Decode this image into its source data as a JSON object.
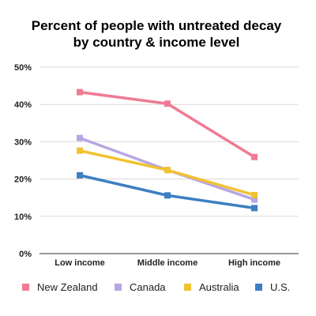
{
  "chart_data": {
    "type": "line",
    "title_lines": [
      "Percent of people with untreated decay",
      "by country & income level"
    ],
    "categories": [
      "Low income",
      "Middle income",
      "High income"
    ],
    "y_ticks": [
      "0%",
      "10%",
      "20%",
      "30%",
      "40%",
      "50%"
    ],
    "ylim": [
      0,
      50
    ],
    "grid": true,
    "legend_position": "bottom",
    "series": [
      {
        "name": "New Zealand",
        "color": "#f07b93",
        "values": [
          43.3,
          40.2,
          25.9
        ]
      },
      {
        "name": "Canada",
        "color": "#b7a6e4",
        "values": [
          31.0,
          22.4,
          14.5
        ]
      },
      {
        "name": "Australia",
        "color": "#f1c232",
        "values": [
          27.6,
          22.4,
          15.7
        ]
      },
      {
        "name": "U.S.",
        "color": "#3d7fc1",
        "values": [
          21.0,
          15.6,
          12.2
        ]
      }
    ]
  }
}
